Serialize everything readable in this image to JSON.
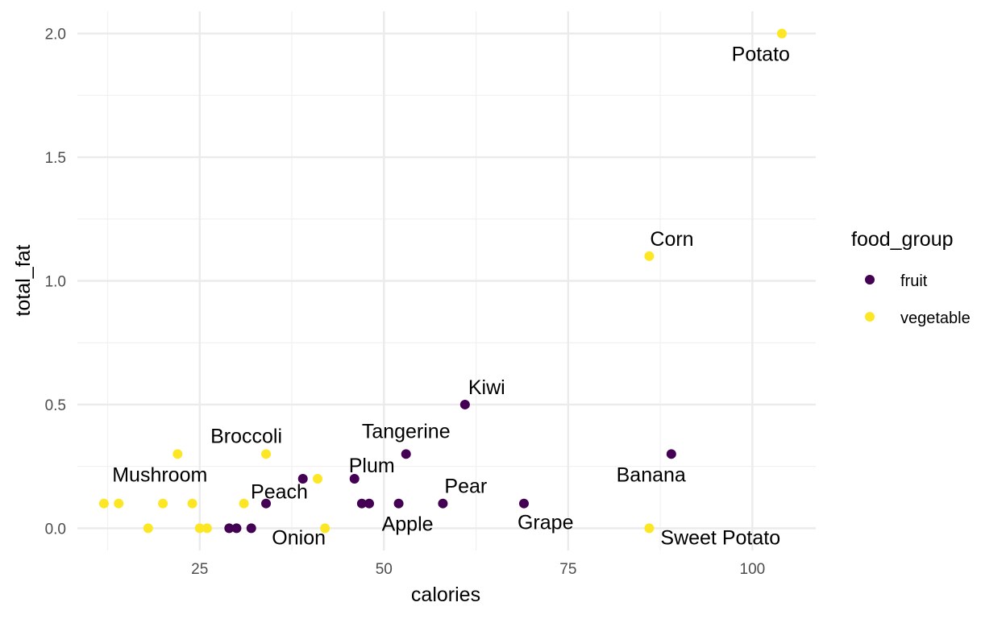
{
  "chart_data": {
    "type": "scatter",
    "title": "",
    "xlabel": "calories",
    "ylabel": "total_fat",
    "xlim": [
      8.4,
      108.6
    ],
    "ylim": [
      -0.09,
      2.09
    ],
    "x_ticks": [
      25,
      50,
      75,
      100
    ],
    "x_tick_labels": [
      "25",
      "50",
      "75",
      "100"
    ],
    "y_ticks": [
      0,
      0.5,
      1,
      1.5,
      2
    ],
    "y_tick_labels": [
      "0.0",
      "0.5",
      "1.0",
      "1.5",
      "2.0"
    ],
    "grid": true,
    "legend": {
      "title": "food_group",
      "position": "right",
      "entries": [
        {
          "label": "fruit",
          "color": "#440154"
        },
        {
          "label": "vegetable",
          "color": "#fde725"
        }
      ]
    },
    "series": [
      {
        "name": "fruit",
        "color": "#440154",
        "points": [
          {
            "x": 29,
            "y": 0.0
          },
          {
            "x": 30,
            "y": 0.0
          },
          {
            "x": 32,
            "y": 0.0
          },
          {
            "x": 34,
            "y": 0.1
          },
          {
            "x": 39,
            "y": 0.2
          },
          {
            "x": 46,
            "y": 0.2
          },
          {
            "x": 47,
            "y": 0.1
          },
          {
            "x": 48,
            "y": 0.1
          },
          {
            "x": 52,
            "y": 0.1
          },
          {
            "x": 53,
            "y": 0.3
          },
          {
            "x": 58,
            "y": 0.1
          },
          {
            "x": 61,
            "y": 0.5
          },
          {
            "x": 69,
            "y": 0.1
          },
          {
            "x": 89,
            "y": 0.3
          }
        ]
      },
      {
        "name": "vegetable",
        "color": "#fde725",
        "points": [
          {
            "x": 12,
            "y": 0.1
          },
          {
            "x": 14,
            "y": 0.1
          },
          {
            "x": 18,
            "y": 0.0
          },
          {
            "x": 20,
            "y": 0.1
          },
          {
            "x": 22,
            "y": 0.3
          },
          {
            "x": 24,
            "y": 0.1
          },
          {
            "x": 25,
            "y": 0.0
          },
          {
            "x": 26,
            "y": 0.0
          },
          {
            "x": 31,
            "y": 0.1
          },
          {
            "x": 34,
            "y": 0.3
          },
          {
            "x": 41,
            "y": 0.2
          },
          {
            "x": 42,
            "y": 0.0
          },
          {
            "x": 86,
            "y": 1.1
          },
          {
            "x": 86,
            "y": 0.0
          },
          {
            "x": 104,
            "y": 2.0
          }
        ]
      }
    ],
    "annotations": [
      {
        "text": "Potato",
        "x": 104,
        "y": 2.0,
        "pos": "below-left"
      },
      {
        "text": "Corn",
        "x": 86,
        "y": 1.1,
        "pos": "above-right"
      },
      {
        "text": "Kiwi",
        "x": 61,
        "y": 0.5,
        "pos": "above-right"
      },
      {
        "text": "Tangerine",
        "x": 53,
        "y": 0.3,
        "pos": "above"
      },
      {
        "text": "Broccoli",
        "x": 34,
        "y": 0.3,
        "pos": "above-left"
      },
      {
        "text": "Banana",
        "x": 89,
        "y": 0.3,
        "pos": "below-left"
      },
      {
        "text": "Mushroom",
        "x": 22,
        "y": 0.3,
        "pos": "below-left"
      },
      {
        "text": "Plum",
        "x": 46,
        "y": 0.2,
        "pos": "above-right"
      },
      {
        "text": "Peach",
        "x": 34,
        "y": 0.1,
        "pos": "above-right"
      },
      {
        "text": "Pear",
        "x": 58,
        "y": 0.1,
        "pos": "above-right"
      },
      {
        "text": "Apple",
        "x": 52,
        "y": 0.1,
        "pos": "below"
      },
      {
        "text": "Grape",
        "x": 69,
        "y": 0.1,
        "pos": "below-right"
      },
      {
        "text": "Onion",
        "x": 41,
        "y": 0.0,
        "pos": "below-left"
      },
      {
        "text": "Sweet Potato",
        "x": 86,
        "y": 0.0,
        "pos": "below-right"
      }
    ]
  }
}
